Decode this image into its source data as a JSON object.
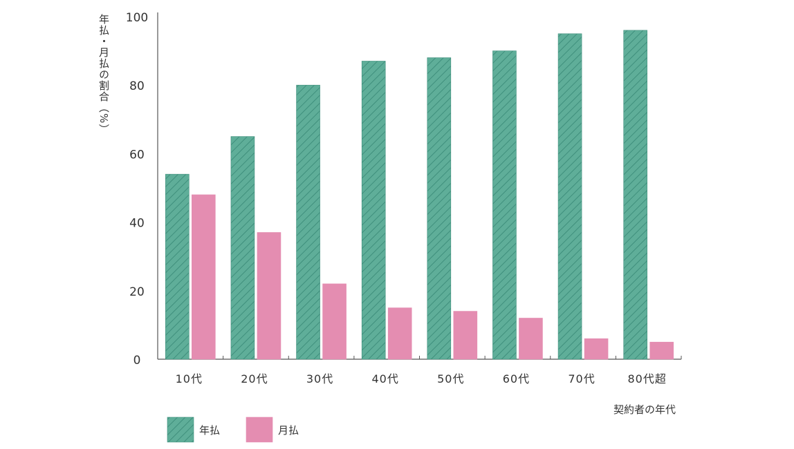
{
  "chart_data": {
    "type": "bar",
    "title": "",
    "xlabel": "契約者の年代",
    "ylabel": "年払・月払の割合（%）",
    "ylim": [
      0,
      100
    ],
    "yticks": [
      "0",
      "20",
      "40",
      "60",
      "80",
      "100"
    ],
    "categories": [
      "10代",
      "20代",
      "30代",
      "40代",
      "50代",
      "60代",
      "70代",
      "80代超"
    ],
    "series": [
      {
        "name": "年払",
        "values": [
          54,
          65,
          80,
          87,
          88,
          90,
          95,
          96
        ],
        "color": "#5fae99",
        "pattern": "diagonal-hatch"
      },
      {
        "name": "月払",
        "values": [
          48,
          37,
          22,
          15,
          14,
          12,
          6,
          5
        ],
        "color": "#e48db1",
        "pattern": "solid"
      }
    ],
    "grid": false,
    "legend_position": "bottom-left"
  }
}
